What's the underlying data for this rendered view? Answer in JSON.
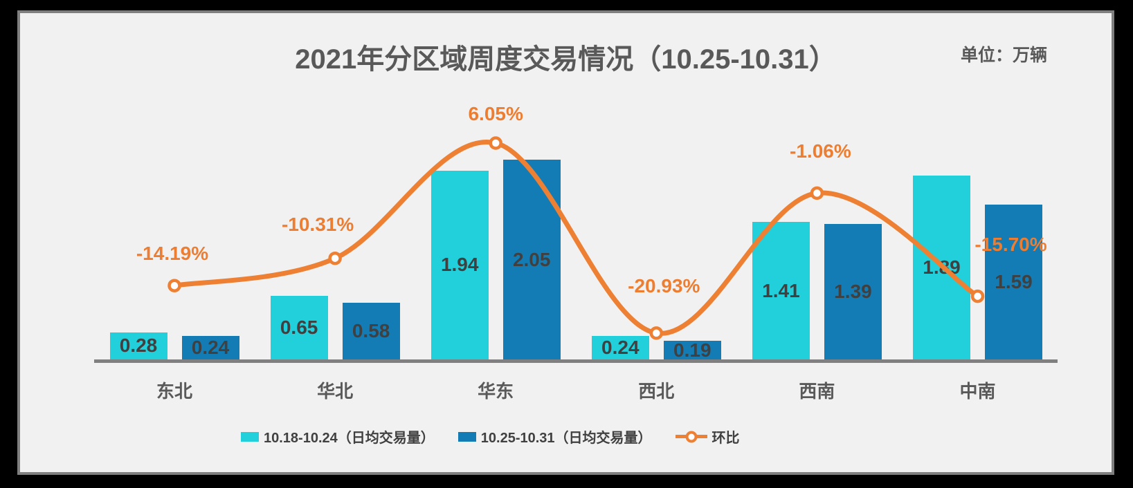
{
  "page": {
    "outer_background": "#000000",
    "slide_background": "#F1F1F1",
    "slide_border_color": "#7F7F7F"
  },
  "chart_data": {
    "type": "bar+line-combo",
    "title": "2021年分区域周度交易情况（10.25-10.31）",
    "unit_label": "单位：万辆",
    "categories": [
      "东北",
      "华北",
      "华东",
      "西北",
      "西南",
      "中南"
    ],
    "bar_series": [
      {
        "name": "10.18-10.24（日均交易量）",
        "color": "#21D0DB",
        "values": [
          0.28,
          0.65,
          1.94,
          0.24,
          1.41,
          1.89
        ],
        "value_labels": [
          "0.28",
          "0.65",
          "1.94",
          "0.24",
          "1.41",
          "1.89"
        ]
      },
      {
        "name": "10.25-10.31（日均交易量）",
        "color": "#137CB5",
        "values": [
          0.24,
          0.58,
          2.05,
          0.19,
          1.39,
          1.59
        ],
        "value_labels": [
          "0.24",
          "0.58",
          "2.05",
          "0.19",
          "1.39",
          "1.59"
        ]
      }
    ],
    "line_series": {
      "name": "环比",
      "line_color": "#ED8033",
      "marker_fill": "#FFFFFF",
      "label_color": "#ED7D31",
      "values_pct": [
        -14.19,
        -10.31,
        6.05,
        -20.93,
        -1.06,
        -15.7
      ],
      "labels": [
        "-14.19%",
        "-10.31%",
        "6.05%",
        "-20.93%",
        "-1.06%",
        "-15.70%"
      ]
    },
    "value_label_color": "#404040",
    "axis_text_color": "#595959",
    "axis_line_color": "#808080",
    "grid": false,
    "legend_position": "bottom",
    "legend_entries": [
      "10.18-10.24（日均交易量）",
      "10.25-10.31（日均交易量）",
      "环比"
    ]
  }
}
